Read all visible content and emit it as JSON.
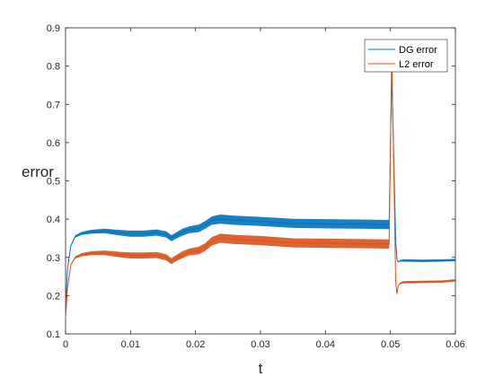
{
  "chart_data": {
    "type": "line",
    "title": "",
    "xlabel": "t",
    "ylabel": "error",
    "xlim": [
      0,
      0.06
    ],
    "ylim": [
      0.1,
      0.9
    ],
    "xticks": [
      0,
      0.01,
      0.02,
      0.03,
      0.04,
      0.05,
      0.06
    ],
    "xtick_labels": [
      "0",
      "0.01",
      "0.02",
      "0.03",
      "0.04",
      "0.05",
      "0.06"
    ],
    "yticks": [
      0.1,
      0.2,
      0.3,
      0.4,
      0.5,
      0.6,
      0.7,
      0.8,
      0.9
    ],
    "ytick_labels": [
      "0.1",
      "0.2",
      "0.3",
      "0.4",
      "0.5",
      "0.6",
      "0.7",
      "0.8",
      "0.9"
    ],
    "grid": false,
    "legend_position": "top-right",
    "oscillation_band": true,
    "series": [
      {
        "name": "DG error",
        "color": "#0072BD",
        "x": [
          0,
          0.0003,
          0.0008,
          0.0015,
          0.0025,
          0.004,
          0.006,
          0.008,
          0.01,
          0.012,
          0.014,
          0.0155,
          0.0163,
          0.017,
          0.018,
          0.019,
          0.0205,
          0.0215,
          0.0225,
          0.0238,
          0.026,
          0.03,
          0.035,
          0.04,
          0.045,
          0.0498,
          0.0502,
          0.0506,
          0.0508,
          0.051,
          0.0512,
          0.0515,
          0.052,
          0.055,
          0.058,
          0.06
        ],
        "y": [
          0.165,
          0.27,
          0.33,
          0.355,
          0.363,
          0.367,
          0.369,
          0.365,
          0.362,
          0.362,
          0.365,
          0.36,
          0.35,
          0.357,
          0.366,
          0.372,
          0.376,
          0.385,
          0.396,
          0.4,
          0.397,
          0.394,
          0.389,
          0.388,
          0.387,
          0.386,
          0.78,
          0.5,
          0.35,
          0.295,
          0.288,
          0.291,
          0.292,
          0.291,
          0.292,
          0.293
        ],
        "band": [
          0,
          0,
          0.002,
          0.003,
          0.004,
          0.005,
          0.006,
          0.007,
          0.008,
          0.008,
          0.008,
          0.008,
          0.008,
          0.008,
          0.009,
          0.009,
          0.01,
          0.01,
          0.011,
          0.012,
          0.012,
          0.012,
          0.012,
          0.012,
          0.012,
          0.012,
          0,
          0,
          0,
          0,
          0,
          0.002,
          0.003,
          0.003,
          0.003,
          0.003
        ]
      },
      {
        "name": "L2 error",
        "color": "#D95319",
        "x": [
          0,
          0.0003,
          0.0008,
          0.0015,
          0.0025,
          0.004,
          0.006,
          0.008,
          0.01,
          0.012,
          0.014,
          0.0155,
          0.0163,
          0.017,
          0.018,
          0.019,
          0.0205,
          0.0215,
          0.0225,
          0.0238,
          0.026,
          0.03,
          0.035,
          0.04,
          0.045,
          0.0498,
          0.0502,
          0.0506,
          0.0508,
          0.051,
          0.0512,
          0.0515,
          0.052,
          0.055,
          0.058,
          0.06
        ],
        "y": [
          0.14,
          0.22,
          0.28,
          0.3,
          0.307,
          0.311,
          0.312,
          0.308,
          0.305,
          0.305,
          0.306,
          0.3,
          0.29,
          0.298,
          0.307,
          0.314,
          0.318,
          0.327,
          0.342,
          0.35,
          0.347,
          0.344,
          0.338,
          0.337,
          0.336,
          0.335,
          0.835,
          0.45,
          0.24,
          0.205,
          0.225,
          0.232,
          0.235,
          0.236,
          0.237,
          0.24
        ],
        "band": [
          0,
          0,
          0.002,
          0.003,
          0.004,
          0.005,
          0.006,
          0.007,
          0.008,
          0.008,
          0.008,
          0.008,
          0.008,
          0.008,
          0.009,
          0.009,
          0.01,
          0.01,
          0.011,
          0.012,
          0.012,
          0.012,
          0.012,
          0.012,
          0.012,
          0.012,
          0,
          0,
          0,
          0,
          0,
          0.002,
          0.003,
          0.003,
          0.003,
          0.003
        ]
      }
    ]
  }
}
